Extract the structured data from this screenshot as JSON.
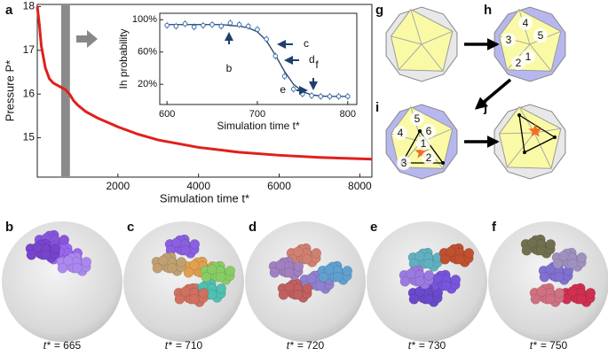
{
  "chart_data": [
    {
      "type": "line",
      "panel": "a",
      "xlabel": "Simulation time t*",
      "ylabel": "Pressure P*",
      "x": [
        0,
        50,
        100,
        200,
        300,
        400,
        600,
        700,
        800,
        900,
        1000,
        1200,
        1500,
        2000,
        2500,
        3000,
        4000,
        5000,
        6000,
        7000,
        8000,
        8300
      ],
      "series": [
        {
          "color": "#e0201c",
          "values": [
            18,
            17.6,
            17.1,
            16.6,
            16.35,
            16.25,
            16.15,
            16.1,
            16.0,
            15.85,
            15.75,
            15.6,
            15.45,
            15.25,
            15.08,
            14.95,
            14.78,
            14.67,
            14.6,
            14.55,
            14.52,
            14.51
          ]
        }
      ],
      "xlim": [
        0,
        8300
      ],
      "xticks": [
        2000,
        4000,
        6000,
        8000
      ],
      "ylim": [
        14.1,
        18.05
      ],
      "yticks": [
        15,
        16,
        17,
        18
      ]
    },
    {
      "type": "scatter",
      "xlabel": "Simulation time t*",
      "ylabel": "Ih probability",
      "x": [
        600,
        610,
        620,
        630,
        640,
        650,
        660,
        670,
        680,
        690,
        700,
        710,
        720,
        730,
        740,
        750,
        760,
        770,
        780,
        790,
        800
      ],
      "series": [
        {
          "color": "#3a6ea5",
          "values": [
            93,
            92,
            95,
            91,
            93,
            94,
            92,
            96,
            94,
            92,
            88,
            76,
            55,
            30,
            14,
            8,
            6,
            5,
            5,
            5,
            5
          ]
        },
        {
          "color": "#1f3f6e",
          "values": [
            94,
            94,
            94,
            94,
            94,
            94,
            94,
            93,
            92,
            90,
            85,
            74,
            56,
            36,
            20,
            11,
            7,
            5.5,
            5,
            5,
            5
          ]
        }
      ],
      "xlim": [
        592,
        810
      ],
      "xticks": [
        600,
        700,
        800
      ],
      "ylim": [
        -5,
        108
      ],
      "yticks": [
        {
          "value": 20,
          "label": "20%"
        },
        {
          "value": 60,
          "label": "60%"
        },
        {
          "value": 100,
          "label": "100%"
        }
      ],
      "annotations": [
        "b",
        "c",
        "d",
        "e",
        "f"
      ]
    }
  ],
  "diagrams": [
    {
      "label": "g",
      "numbers": []
    },
    {
      "label": "h",
      "numbers": [
        "4",
        "5",
        "3",
        "1",
        "2"
      ]
    },
    {
      "label": "i",
      "numbers": [
        "5",
        "6",
        "4",
        "1",
        "3",
        "2"
      ]
    },
    {
      "label": "j",
      "numbers": []
    }
  ],
  "snapshots": [
    {
      "label": "b",
      "var": "t*",
      "text": "= 665"
    },
    {
      "label": "c",
      "var": "t*",
      "text": "= 710"
    },
    {
      "label": "d",
      "var": "t*",
      "text": "= 720"
    },
    {
      "label": "e",
      "var": "t*",
      "text": "= 730"
    },
    {
      "label": "f",
      "var": "t*",
      "text": "= 750"
    }
  ]
}
